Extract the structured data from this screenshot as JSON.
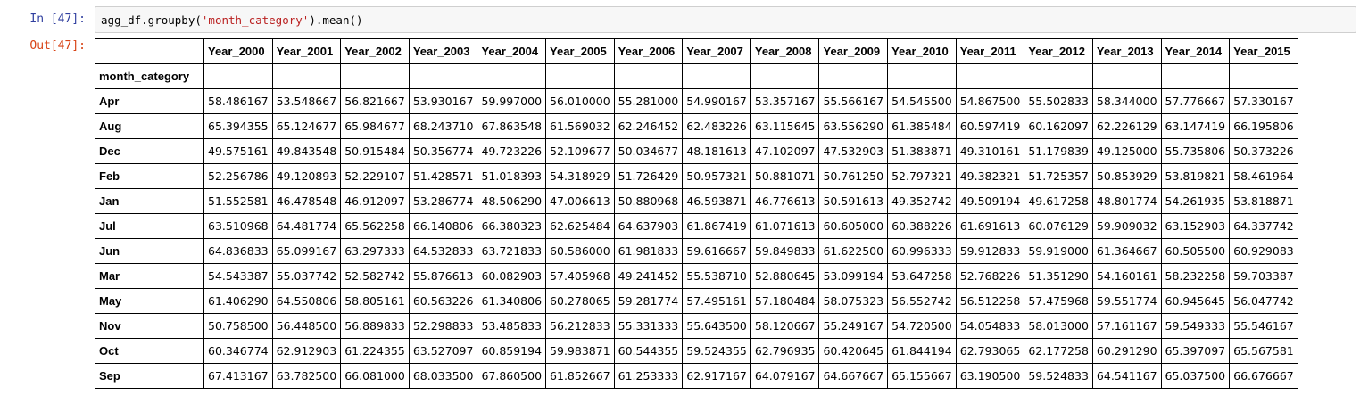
{
  "input_cell": {
    "prompt": "In [47]:",
    "code_prefix": "agg_df.groupby(",
    "code_string": "'month_category'",
    "code_suffix": ").mean()"
  },
  "output_cell": {
    "prompt": "Out[47]:",
    "index_name": "month_category",
    "columns": [
      "Year_2000",
      "Year_2001",
      "Year_2002",
      "Year_2003",
      "Year_2004",
      "Year_2005",
      "Year_2006",
      "Year_2007",
      "Year_2008",
      "Year_2009",
      "Year_2010",
      "Year_2011",
      "Year_2012",
      "Year_2013",
      "Year_2014",
      "Year_2015"
    ],
    "rows": [
      {
        "label": "Apr",
        "values": [
          "58.486167",
          "53.548667",
          "56.821667",
          "53.930167",
          "59.997000",
          "56.010000",
          "55.281000",
          "54.990167",
          "53.357167",
          "55.566167",
          "54.545500",
          "54.867500",
          "55.502833",
          "58.344000",
          "57.776667",
          "57.330167"
        ]
      },
      {
        "label": "Aug",
        "values": [
          "65.394355",
          "65.124677",
          "65.984677",
          "68.243710",
          "67.863548",
          "61.569032",
          "62.246452",
          "62.483226",
          "63.115645",
          "63.556290",
          "61.385484",
          "60.597419",
          "60.162097",
          "62.226129",
          "63.147419",
          "66.195806"
        ]
      },
      {
        "label": "Dec",
        "values": [
          "49.575161",
          "49.843548",
          "50.915484",
          "50.356774",
          "49.723226",
          "52.109677",
          "50.034677",
          "48.181613",
          "47.102097",
          "47.532903",
          "51.383871",
          "49.310161",
          "51.179839",
          "49.125000",
          "55.735806",
          "50.373226"
        ]
      },
      {
        "label": "Feb",
        "values": [
          "52.256786",
          "49.120893",
          "52.229107",
          "51.428571",
          "51.018393",
          "54.318929",
          "51.726429",
          "50.957321",
          "50.881071",
          "50.761250",
          "52.797321",
          "49.382321",
          "51.725357",
          "50.853929",
          "53.819821",
          "58.461964"
        ]
      },
      {
        "label": "Jan",
        "values": [
          "51.552581",
          "46.478548",
          "46.912097",
          "53.286774",
          "48.506290",
          "47.006613",
          "50.880968",
          "46.593871",
          "46.776613",
          "50.591613",
          "49.352742",
          "49.509194",
          "49.617258",
          "48.801774",
          "54.261935",
          "53.818871"
        ]
      },
      {
        "label": "Jul",
        "values": [
          "63.510968",
          "64.481774",
          "65.562258",
          "66.140806",
          "66.380323",
          "62.625484",
          "64.637903",
          "61.867419",
          "61.071613",
          "60.605000",
          "60.388226",
          "61.691613",
          "60.076129",
          "59.909032",
          "63.152903",
          "64.337742"
        ]
      },
      {
        "label": "Jun",
        "values": [
          "64.836833",
          "65.099167",
          "63.297333",
          "64.532833",
          "63.721833",
          "60.586000",
          "61.981833",
          "59.616667",
          "59.849833",
          "61.622500",
          "60.996333",
          "59.912833",
          "59.919000",
          "61.364667",
          "60.505500",
          "60.929083"
        ]
      },
      {
        "label": "Mar",
        "values": [
          "54.543387",
          "55.037742",
          "52.582742",
          "55.876613",
          "60.082903",
          "57.405968",
          "49.241452",
          "55.538710",
          "52.880645",
          "53.099194",
          "53.647258",
          "52.768226",
          "51.351290",
          "54.160161",
          "58.232258",
          "59.703387"
        ]
      },
      {
        "label": "May",
        "values": [
          "61.406290",
          "64.550806",
          "58.805161",
          "60.563226",
          "61.340806",
          "60.278065",
          "59.281774",
          "57.495161",
          "57.180484",
          "58.075323",
          "56.552742",
          "56.512258",
          "57.475968",
          "59.551774",
          "60.945645",
          "56.047742"
        ]
      },
      {
        "label": "Nov",
        "values": [
          "50.758500",
          "56.448500",
          "56.889833",
          "52.298833",
          "53.485833",
          "56.212833",
          "55.331333",
          "55.643500",
          "58.120667",
          "55.249167",
          "54.720500",
          "54.054833",
          "58.013000",
          "57.161167",
          "59.549333",
          "55.546167"
        ]
      },
      {
        "label": "Oct",
        "values": [
          "60.346774",
          "62.912903",
          "61.224355",
          "63.527097",
          "60.859194",
          "59.983871",
          "60.544355",
          "59.524355",
          "62.796935",
          "60.420645",
          "61.844194",
          "62.793065",
          "62.177258",
          "60.291290",
          "65.397097",
          "65.567581"
        ]
      },
      {
        "label": "Sep",
        "values": [
          "67.413167",
          "63.782500",
          "66.081000",
          "68.033500",
          "67.860500",
          "61.852667",
          "61.253333",
          "62.917167",
          "64.079167",
          "64.667667",
          "65.155667",
          "63.190500",
          "59.524833",
          "64.541167",
          "65.037500",
          "66.676667"
        ]
      }
    ]
  }
}
